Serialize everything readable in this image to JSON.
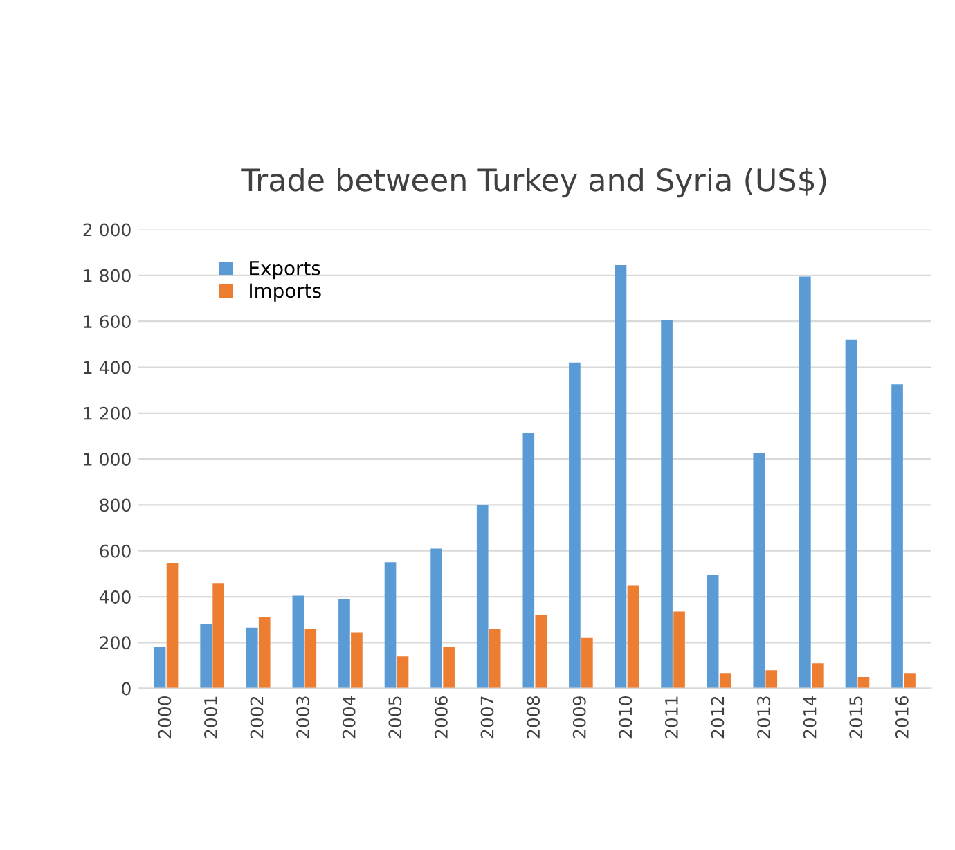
{
  "chart_data": {
    "type": "bar",
    "title": "Trade between Turkey and Syria (US$)",
    "categories": [
      "2000",
      "2001",
      "2002",
      "2003",
      "2004",
      "2005",
      "2006",
      "2007",
      "2008",
      "2009",
      "2010",
      "2011",
      "2012",
      "2013",
      "2014",
      "2015",
      "2016"
    ],
    "series": [
      {
        "name": "Exports",
        "color": "#5b9bd5",
        "values": [
          180,
          280,
          265,
          405,
          390,
          550,
          610,
          800,
          1115,
          1420,
          1845,
          1605,
          495,
          1025,
          1795,
          1520,
          1325
        ]
      },
      {
        "name": "Imports",
        "color": "#ed7d31",
        "values": [
          545,
          460,
          310,
          260,
          245,
          140,
          180,
          260,
          320,
          220,
          450,
          335,
          65,
          80,
          110,
          50,
          65
        ]
      }
    ],
    "ylim": [
      0,
      2000
    ],
    "yticks": [
      0,
      200,
      400,
      600,
      800,
      {
        "value": 1000,
        "label": "1 000"
      },
      {
        "value": 1200,
        "label": "1 200"
      },
      {
        "value": 1400,
        "label": "1 400"
      },
      {
        "value": 1600,
        "label": "1 600"
      },
      {
        "value": 1800,
        "label": "1 800"
      },
      {
        "value": 2000,
        "label": "2 000"
      }
    ],
    "grid": "y",
    "legend": "top left"
  }
}
